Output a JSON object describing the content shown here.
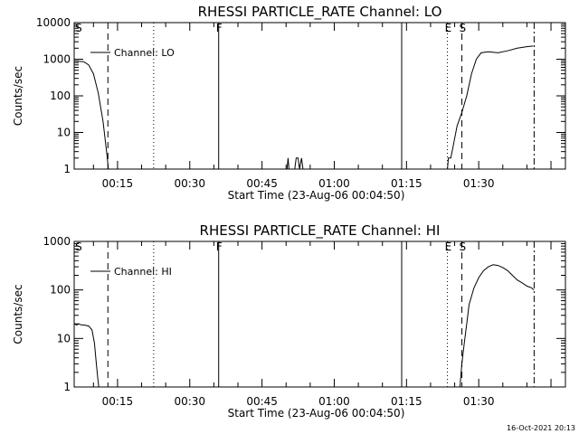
{
  "footer": {
    "timestamp": "16-Oct-2021 20:13"
  },
  "chart_data": [
    {
      "type": "line",
      "title": "RHESSI  PARTICLE_RATE  Channel:  LO",
      "xlabel": "Start Time (23-Aug-06 00:04:50)",
      "ylabel": "Counts/sec",
      "yscale": "log",
      "ylim": [
        1,
        10000
      ],
      "yticks": [
        1,
        10,
        100,
        1000,
        10000
      ],
      "ytick_labels": [
        "1",
        "10",
        "100",
        "1000",
        "10000"
      ],
      "xlim": [
        6,
        108
      ],
      "xticks": [
        15,
        30,
        45,
        60,
        75,
        90
      ],
      "xtick_labels": [
        "00:15",
        "00:30",
        "00:45",
        "01:00",
        "01:15",
        "01:30"
      ],
      "legend": {
        "label": "Channel: LO",
        "placement": "top-left"
      },
      "markers": [
        {
          "x": 13.0,
          "style": "dashed"
        },
        {
          "x": 22.5,
          "style": "dotted"
        },
        {
          "x": 36.0,
          "style": "solid",
          "label": "F"
        },
        {
          "x": 74.0,
          "style": "solid"
        },
        {
          "x": 83.5,
          "style": "dotted",
          "label": "E"
        },
        {
          "x": 86.5,
          "style": "dashed",
          "label": "S"
        },
        {
          "x": 101.5,
          "style": "dashdot"
        }
      ],
      "edge_labels": [
        {
          "x": 6.2,
          "label": "S"
        }
      ],
      "series": [
        {
          "points": [
            [
              6,
              900
            ],
            [
              7,
              880
            ],
            [
              8,
              860
            ],
            [
              9,
              700
            ],
            [
              10,
              400
            ],
            [
              11,
              120
            ],
            [
              12,
              20
            ],
            [
              12.8,
              2.5
            ],
            [
              13.1,
              1
            ]
          ]
        },
        {
          "points": [
            [
              50.2,
              1
            ],
            [
              50.4,
              2
            ],
            [
              50.6,
              1
            ]
          ]
        },
        {
          "points": [
            [
              51.8,
              1
            ],
            [
              52.1,
              2
            ],
            [
              52.5,
              2
            ],
            [
              52.8,
              1
            ],
            [
              53.2,
              2
            ],
            [
              53.5,
              1
            ]
          ]
        },
        {
          "points": [
            [
              83.5,
              1
            ],
            [
              83.7,
              2
            ],
            [
              84.2,
              2
            ],
            [
              84.8,
              5
            ],
            [
              85.5,
              15
            ],
            [
              86.5,
              35
            ],
            [
              87.5,
              100
            ],
            [
              88.5,
              400
            ],
            [
              89.5,
              1000
            ],
            [
              90.5,
              1500
            ],
            [
              92,
              1600
            ],
            [
              94,
              1500
            ],
            [
              96,
              1700
            ],
            [
              98,
              2000
            ],
            [
              100,
              2200
            ],
            [
              101.3,
              2300
            ]
          ]
        }
      ]
    },
    {
      "type": "line",
      "title": "RHESSI  PARTICLE_RATE  Channel:  HI",
      "xlabel": "Start Time (23-Aug-06 00:04:50)",
      "ylabel": "Counts/sec",
      "yscale": "log",
      "ylim": [
        1,
        1000
      ],
      "yticks": [
        1,
        10,
        100,
        1000
      ],
      "ytick_labels": [
        "1",
        "10",
        "100",
        "1000"
      ],
      "xlim": [
        6,
        108
      ],
      "xticks": [
        15,
        30,
        45,
        60,
        75,
        90
      ],
      "xtick_labels": [
        "00:15",
        "00:30",
        "00:45",
        "01:00",
        "01:15",
        "01:30"
      ],
      "legend": {
        "label": "Channel: HI",
        "placement": "top-left"
      },
      "markers": [
        {
          "x": 13.0,
          "style": "dashed"
        },
        {
          "x": 22.5,
          "style": "dotted"
        },
        {
          "x": 36.0,
          "style": "solid",
          "label": "F"
        },
        {
          "x": 74.0,
          "style": "solid"
        },
        {
          "x": 83.5,
          "style": "dotted",
          "label": "E"
        },
        {
          "x": 86.5,
          "style": "dashed",
          "label": "S"
        },
        {
          "x": 101.5,
          "style": "dashdot"
        }
      ],
      "edge_labels": [
        {
          "x": 6.2,
          "label": "S"
        }
      ],
      "series": [
        {
          "points": [
            [
              6,
              20
            ],
            [
              6.5,
              19
            ],
            [
              7,
              20
            ],
            [
              7.5,
              19
            ],
            [
              8,
              19
            ],
            [
              9,
              18
            ],
            [
              9.7,
              15
            ],
            [
              10.2,
              8
            ],
            [
              10.6,
              3
            ],
            [
              10.9,
              1.5
            ],
            [
              11.1,
              1
            ]
          ]
        },
        {
          "points": [
            [
              86.1,
              1
            ],
            [
              86.5,
              3
            ],
            [
              87,
              8
            ],
            [
              87.5,
              20
            ],
            [
              88,
              50
            ],
            [
              89,
              110
            ],
            [
              90,
              180
            ],
            [
              91,
              250
            ],
            [
              92,
              300
            ],
            [
              93,
              330
            ],
            [
              94,
              320
            ],
            [
              95,
              290
            ],
            [
              96,
              250
            ],
            [
              97,
              200
            ],
            [
              98,
              160
            ],
            [
              99,
              140
            ],
            [
              100,
              120
            ],
            [
              101,
              110
            ],
            [
              101.4,
              100
            ]
          ]
        }
      ]
    }
  ]
}
